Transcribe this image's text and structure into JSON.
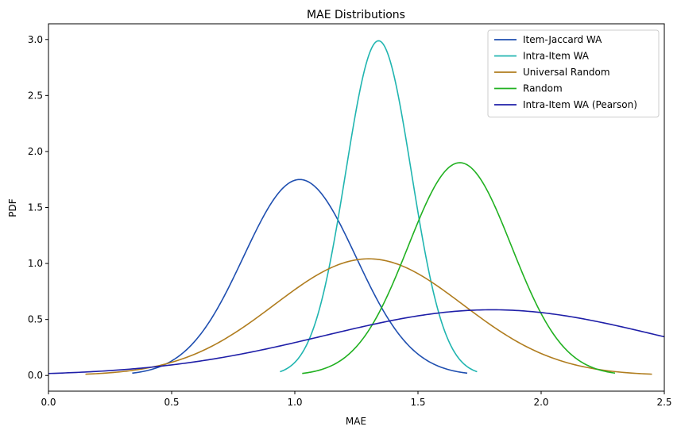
{
  "chart_data": {
    "type": "line",
    "title": "MAE Distributions",
    "xlabel": "MAE",
    "ylabel": "PDF",
    "xlim": [
      0.0,
      2.5
    ],
    "ylim": [
      -0.14,
      3.14
    ],
    "xticks": [
      "0.0",
      "0.5",
      "1.0",
      "1.5",
      "2.0",
      "2.5"
    ],
    "yticks": [
      "0.0",
      "0.5",
      "1.0",
      "1.5",
      "2.0",
      "2.5",
      "3.0"
    ],
    "grid": false,
    "legend_position": "top-right",
    "series": [
      {
        "name": "Item-Jaccard WA",
        "color": "#1f4fb0",
        "distribution": "normal",
        "mean": 1.02,
        "std": 0.228,
        "x_range": [
          0.34,
          1.7
        ]
      },
      {
        "name": "Intra-Item WA",
        "color": "#20b5b0",
        "distribution": "normal",
        "mean": 1.34,
        "std": 0.1335,
        "x_range": [
          0.94,
          1.74
        ]
      },
      {
        "name": "Universal Random",
        "color": "#b07d1f",
        "distribution": "normal",
        "mean": 1.3,
        "std": 0.383,
        "x_range": [
          0.15,
          2.45
        ]
      },
      {
        "name": "Random",
        "color": "#21b121",
        "distribution": "normal",
        "mean": 1.67,
        "std": 0.21,
        "x_range": [
          1.03,
          2.3
        ]
      },
      {
        "name": "Intra-Item WA (Pearson)",
        "color": "#1f1fa8",
        "distribution": "normal",
        "mean": 1.8,
        "std": 0.68,
        "x_range": [
          0.0,
          2.5
        ]
      }
    ]
  }
}
